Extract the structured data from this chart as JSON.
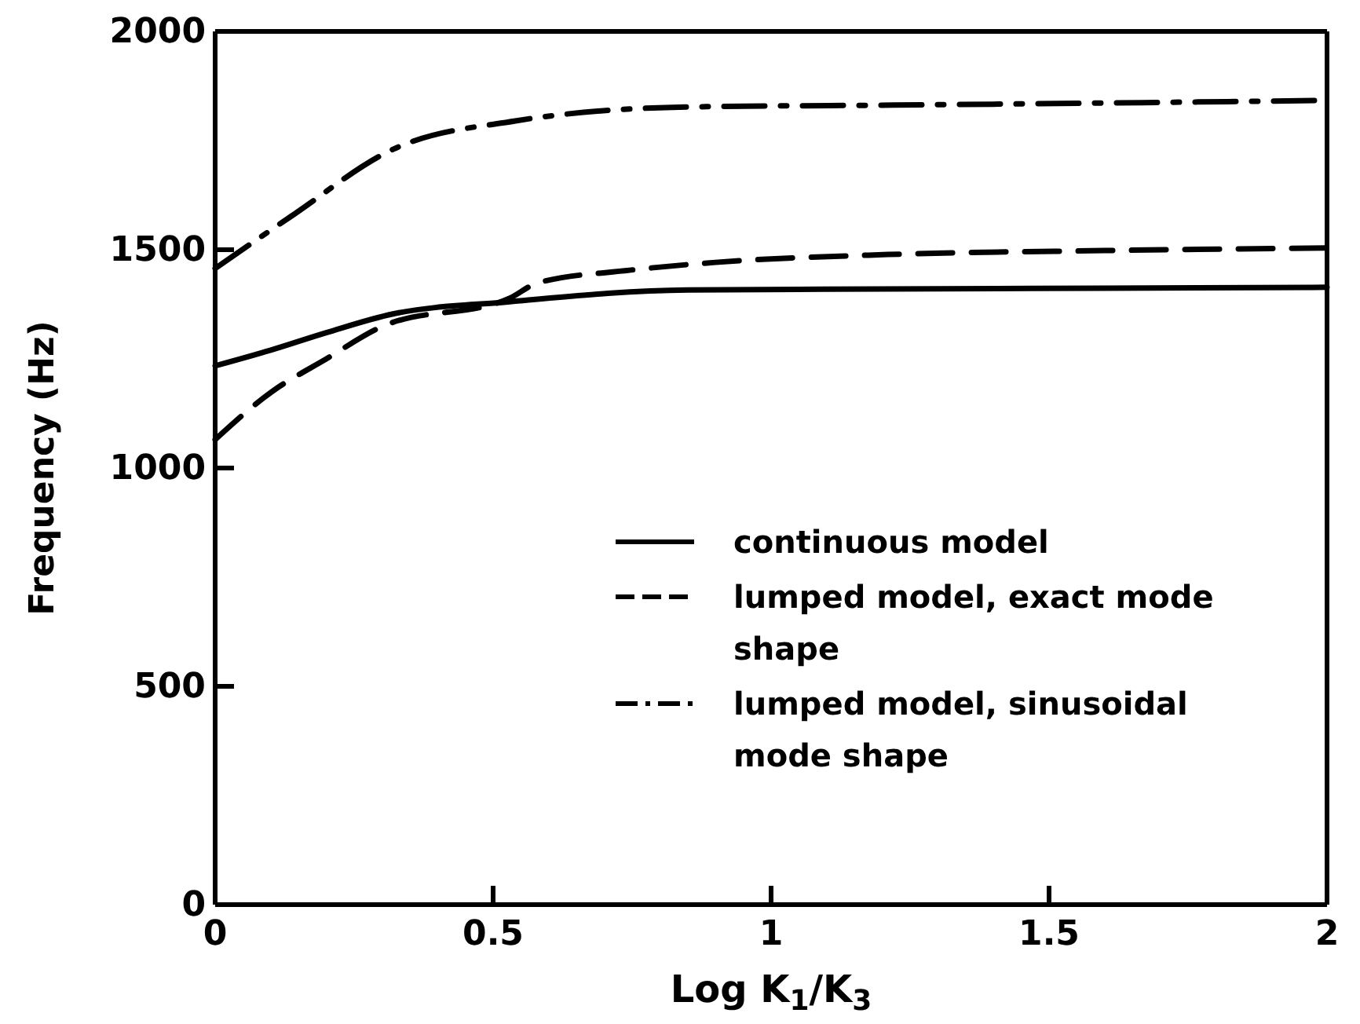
{
  "chart_data": {
    "type": "line",
    "xlabel": "Log K$_{1}$/K$_{3}$",
    "ylabel": "Frequency (Hz)",
    "xlim": [
      0,
      2
    ],
    "ylim": [
      0,
      2000
    ],
    "xticks": [
      0,
      0.5,
      1,
      1.5,
      2
    ],
    "yticks": [
      0,
      500,
      1000,
      1500,
      2000
    ],
    "grid": false,
    "legend": "right",
    "marker": "none",
    "series": [
      {
        "name": "continuous model",
        "color": "#000000",
        "line_style": "solid",
        "x": [
          0,
          0.1,
          0.2,
          0.32,
          0.53,
          0.85,
          1.2,
          1.6,
          2
        ],
        "values": [
          1234,
          1270,
          1310,
          1353,
          1381,
          1408,
          1410,
          1412,
          1414
        ]
      },
      {
        "name": "lumped model, exact mode shape",
        "color": "#000000",
        "line_style": "dashed",
        "x": [
          0,
          0.1,
          0.2,
          0.3,
          0.53,
          0.58,
          0.745,
          0.9,
          1.21,
          1.6,
          2
        ],
        "values": [
          1065,
          1173,
          1250,
          1324,
          1389,
          1424,
          1453,
          1471,
          1489,
          1498,
          1504
        ]
      },
      {
        "name": "lumped model, sinusoidal mode shape",
        "color": "#000000",
        "line_style": "dashdot",
        "x": [
          0,
          0.136,
          0.32,
          0.54,
          0.85,
          1.2,
          1.6,
          2
        ],
        "values": [
          1457,
          1576,
          1730,
          1795,
          1827,
          1831,
          1836,
          1842
        ]
      }
    ]
  }
}
